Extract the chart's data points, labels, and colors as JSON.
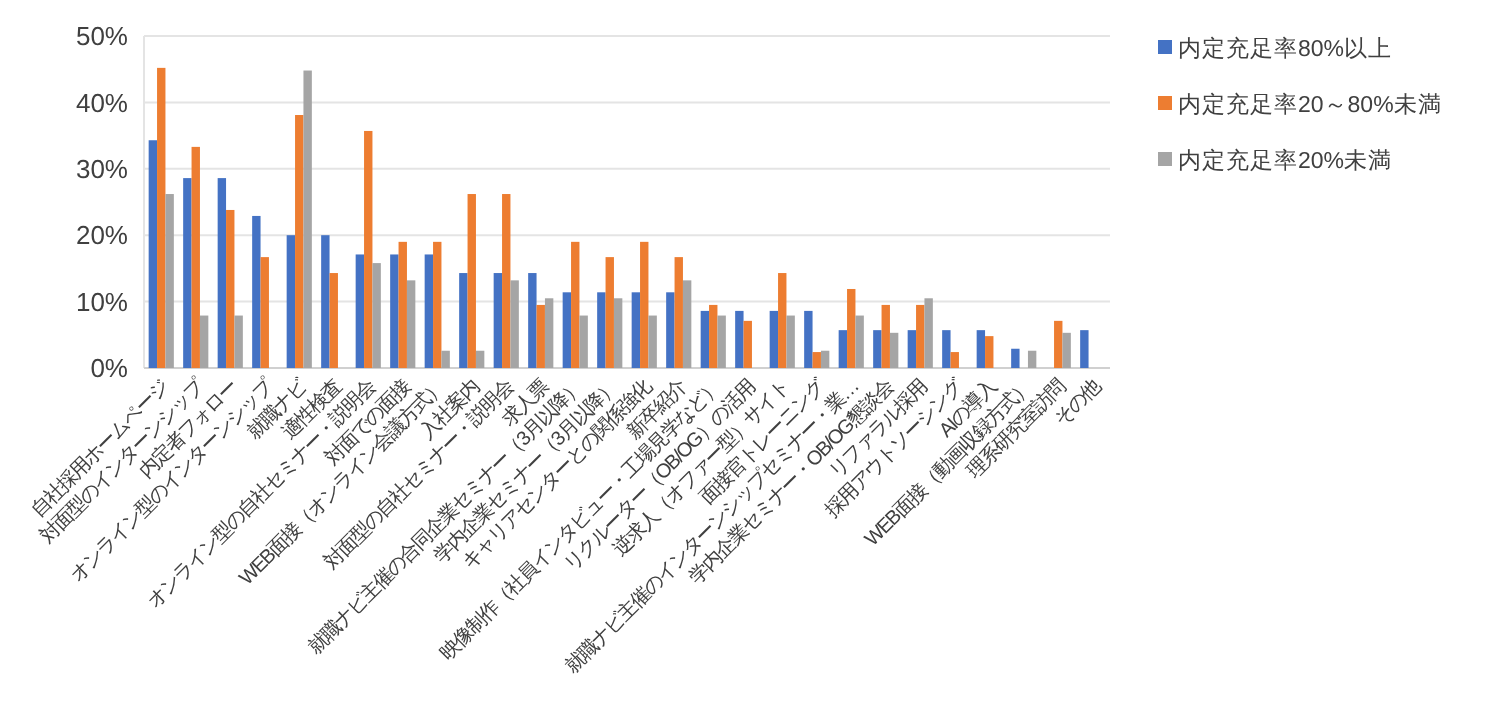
{
  "chart_data": {
    "type": "bar",
    "categories": [
      "自社採用ホームページ",
      "対面型のインターンシップ",
      "内定者フォロー",
      "オンライン型のインターンシップ",
      "就職ナビ",
      "適性検査",
      "オンライン型の自社セミナー・説明会",
      "対面での面接",
      "WEB面接（オンライン会議方式）",
      "入社案内",
      "対面型の自社セミナー・説明会",
      "求人票",
      "就職ナビ主催の合同企業セミナー（3月以降）",
      "学内企業セミナー（3月以降）",
      "キャリアセンターとの関係強化",
      "新卒紹介",
      "映像制作（社員インタビュー・工場見学など）",
      "リクルーター（OB/OG）の活用",
      "逆求人（オファー型）サイト",
      "面接官トレーニング",
      "就職ナビ主催のインターンシップセミナー・業…",
      "学内企業セミナー・OB/OG懇談会",
      "リファラル採用",
      "採用アウトソーシング",
      "AIの導入",
      "WEB面接（動画収録方式）",
      "理系研究室訪問",
      "その他"
    ],
    "series": [
      {
        "name": "内定充足率80%以上",
        "color": "#4472c4",
        "values": [
          34.3,
          28.6,
          28.6,
          22.9,
          20.0,
          20.0,
          17.1,
          17.1,
          17.1,
          14.3,
          14.3,
          14.3,
          11.4,
          11.4,
          11.4,
          11.4,
          8.6,
          8.6,
          8.6,
          8.6,
          5.7,
          5.7,
          5.7,
          5.7,
          5.7,
          2.9,
          null,
          5.7
        ]
      },
      {
        "name": "内定充足率20～80%未満",
        "color": "#ed7d31",
        "values": [
          45.2,
          33.3,
          23.8,
          16.7,
          38.1,
          14.3,
          35.7,
          19.0,
          19.0,
          26.2,
          26.2,
          9.5,
          19.0,
          16.7,
          19.0,
          16.7,
          9.5,
          7.1,
          14.3,
          2.4,
          11.9,
          9.5,
          9.5,
          2.4,
          4.8,
          null,
          7.1,
          null
        ]
      },
      {
        "name": "内定充足率20%未満",
        "color": "#a5a5a5",
        "values": [
          26.2,
          7.9,
          7.9,
          null,
          44.8,
          null,
          15.8,
          13.2,
          2.6,
          2.6,
          13.2,
          10.5,
          7.9,
          10.5,
          7.9,
          13.2,
          7.9,
          null,
          7.9,
          2.6,
          7.9,
          5.3,
          10.5,
          null,
          null,
          2.6,
          5.3,
          null
        ]
      }
    ],
    "ylim": [
      0,
      50
    ],
    "yticks": [
      {
        "value": 0,
        "label": "0%"
      },
      {
        "value": 10,
        "label": "10%"
      },
      {
        "value": 20,
        "label": "20%"
      },
      {
        "value": 30,
        "label": "30%"
      },
      {
        "value": 40,
        "label": "40%"
      },
      {
        "value": 50,
        "label": "50%"
      }
    ],
    "grid": "y",
    "legend": "top right"
  }
}
